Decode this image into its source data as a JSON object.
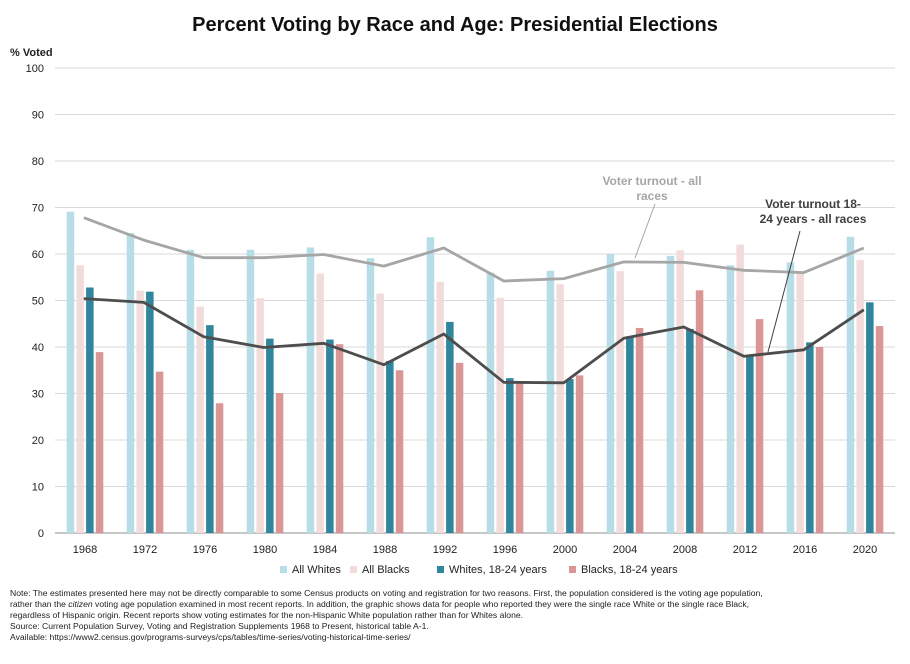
{
  "chart_data": {
    "type": "bar",
    "title": "Percent Voting by Race and Age:  Presidential Elections",
    "ylabel": "% Voted",
    "ylim": [
      0,
      100
    ],
    "yticks": [
      0,
      10,
      20,
      30,
      40,
      50,
      60,
      70,
      80,
      90,
      100
    ],
    "categories": [
      "1968",
      "1972",
      "1976",
      "1980",
      "1984",
      "1988",
      "1992",
      "1996",
      "2000",
      "2004",
      "2008",
      "2012",
      "2016",
      "2020"
    ],
    "series": [
      {
        "name": "All Whites",
        "kind": "bar",
        "color": "#b7dde6",
        "values": [
          69.1,
          64.5,
          60.9,
          60.9,
          61.4,
          59.1,
          63.6,
          56.0,
          56.4,
          60.0,
          59.6,
          57.6,
          58.2,
          63.7
        ]
      },
      {
        "name": "All Blacks",
        "kind": "bar",
        "color": "#f2dcdb",
        "values": [
          57.6,
          52.1,
          48.7,
          50.5,
          55.8,
          51.5,
          54.0,
          50.6,
          53.5,
          56.3,
          60.8,
          62.0,
          55.9,
          58.7
        ]
      },
      {
        "name": "Whites, 18-24 years",
        "kind": "bar",
        "color": "#31859c",
        "values": [
          52.8,
          51.9,
          44.7,
          41.8,
          41.6,
          37.0,
          45.4,
          33.3,
          33.1,
          42.3,
          43.9,
          38.0,
          41.0,
          49.6
        ]
      },
      {
        "name": "Blacks, 18-24 years",
        "kind": "bar",
        "color": "#d99694",
        "values": [
          38.9,
          34.7,
          27.9,
          30.1,
          40.6,
          35.0,
          36.6,
          32.4,
          33.9,
          44.1,
          52.2,
          46.0,
          40.0,
          44.5
        ]
      },
      {
        "name": "Voter turnout - all races",
        "kind": "line",
        "color": "#a6a6a6",
        "values": [
          67.8,
          63.0,
          59.2,
          59.2,
          59.9,
          57.4,
          61.3,
          54.2,
          54.7,
          58.3,
          58.2,
          56.5,
          56.0,
          61.3
        ]
      },
      {
        "name": "Voter turnout 18-24 years - all races",
        "kind": "line",
        "color": "#4d4d4d",
        "values": [
          50.4,
          49.6,
          42.2,
          39.9,
          40.8,
          36.2,
          42.8,
          32.4,
          32.3,
          41.9,
          44.3,
          38.0,
          39.4,
          48.0
        ]
      }
    ],
    "annotations": [
      {
        "lines": [
          "Voter turnout - all",
          "races"
        ],
        "color": "#a6a6a6"
      },
      {
        "lines": [
          "Voter turnout 18-",
          "24 years - all races"
        ],
        "color": "#404040"
      }
    ],
    "legend": {
      "placement": "bottom-center",
      "entries": [
        "All Whites",
        "All Blacks",
        "Whites, 18-24 years",
        "Blacks, 18-24 years"
      ]
    },
    "grid": true
  },
  "notes": {
    "note_line1": "Note: The estimates presented here may not be directly comparable to some Census products on voting and registration for two reasons. First, the population considered is the voting age population,",
    "note_line2_pre": "rather than the ",
    "note_line2_em": "citizen",
    "note_line2_post": " voting age population examined in most recent reports. In addition, the graphic shows data for people who reported they were the single race White or the single race Black,",
    "note_line3": "regardless of Hispanic origin. Recent reports show voting estimates for the non-Hispanic White population rather than for Whites alone.",
    "source": "Source: Current Population Survey, Voting and Registration Supplements 1968 to Present, historical table A-1.",
    "available": "Available: https://www2.census.gov/programs-surveys/cps/tables/time-series/voting-historical-time-series/"
  }
}
